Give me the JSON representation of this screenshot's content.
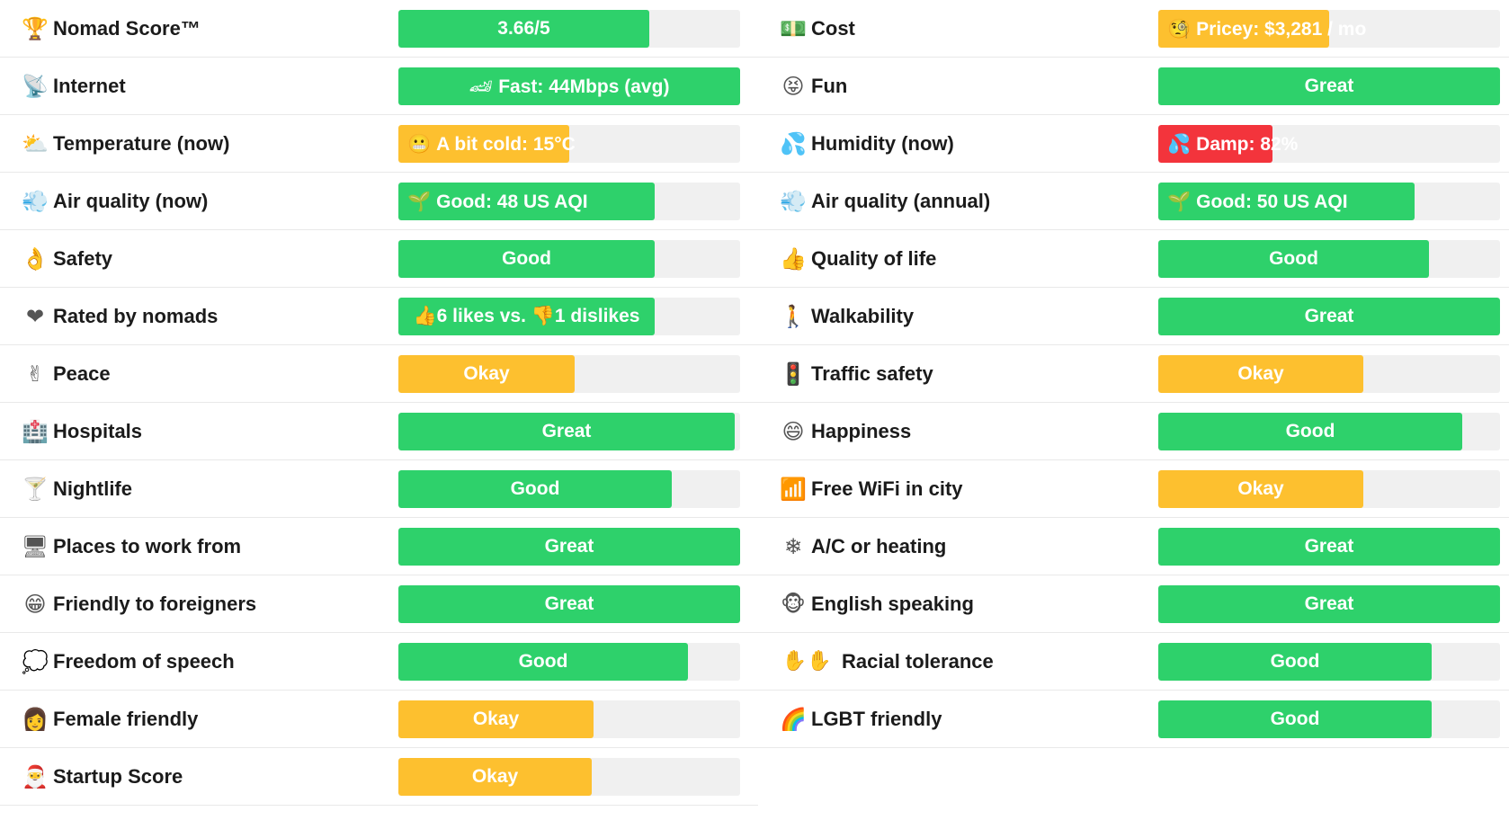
{
  "colors": {
    "green": "#2ed16b",
    "yellow": "#fdc02f",
    "red": "#f3343c",
    "track": "#f0f0f0"
  },
  "left": [
    {
      "name": "nomad-score",
      "icon": "trophy-icon",
      "glyph": "🏆",
      "label": "Nomad Score™",
      "value": "3.66/5",
      "level": 0.733,
      "color": "#2ed16b",
      "emoji": ""
    },
    {
      "name": "internet",
      "icon": "satellite-icon",
      "glyph": "📡",
      "label": "Internet",
      "value": "Fast: 44Mbps (avg)",
      "level": 1.0,
      "color": "#2ed16b",
      "emoji": "🏎"
    },
    {
      "name": "temperature-now",
      "icon": "cloud-icon",
      "glyph": "⛅",
      "label": "Temperature (now)",
      "value": "A bit cold: 15°C",
      "level": 0.5,
      "color": "#fdc02f",
      "emoji": "😬"
    },
    {
      "name": "air-quality-now",
      "icon": "wind-icon",
      "glyph": "💨",
      "label": "Air quality (now)",
      "value": "Good: 48 US AQI",
      "level": 0.75,
      "color": "#2ed16b",
      "emoji": "🌱"
    },
    {
      "name": "safety",
      "icon": "ok-hand-icon",
      "glyph": "👌",
      "label": "Safety",
      "value": "Good",
      "level": 0.75,
      "color": "#2ed16b",
      "emoji": ""
    },
    {
      "name": "rated-by-nomads",
      "icon": "heart-icon",
      "glyph": "❤",
      "label": "Rated by nomads",
      "value": "👍6 likes vs. 👎1 dislikes",
      "level": 0.75,
      "color": "#2ed16b",
      "emoji": ""
    },
    {
      "name": "peace",
      "icon": "peace-hand-icon",
      "glyph": "✌",
      "label": "Peace",
      "value": "Okay",
      "level": 0.516,
      "color": "#fdc02f",
      "emoji": ""
    },
    {
      "name": "hospitals",
      "icon": "hospital-icon",
      "glyph": "🏥",
      "label": "Hospitals",
      "value": "Great",
      "level": 0.984,
      "color": "#2ed16b",
      "emoji": ""
    },
    {
      "name": "nightlife",
      "icon": "cocktail-icon",
      "glyph": "🍸",
      "label": "Nightlife",
      "value": "Good",
      "level": 0.8,
      "color": "#2ed16b",
      "emoji": ""
    },
    {
      "name": "places-to-work",
      "icon": "desktop-icon",
      "glyph": "🖥",
      "label": "Places to work from",
      "value": "Great",
      "level": 1.0,
      "color": "#2ed16b",
      "emoji": ""
    },
    {
      "name": "friendly-to-foreigners",
      "icon": "grin-icon",
      "glyph": "😁",
      "label": "Friendly to foreigners",
      "value": "Great",
      "level": 1.0,
      "color": "#2ed16b",
      "emoji": ""
    },
    {
      "name": "freedom-of-speech",
      "icon": "speech-bubble-icon",
      "glyph": "💭",
      "label": "Freedom of speech",
      "value": "Good",
      "level": 0.847,
      "color": "#2ed16b",
      "emoji": ""
    },
    {
      "name": "female-friendly",
      "icon": "woman-icon",
      "glyph": "👩",
      "label": "Female friendly",
      "value": "Okay",
      "level": 0.571,
      "color": "#fdc02f",
      "emoji": ""
    },
    {
      "name": "startup-score",
      "icon": "santa-icon",
      "glyph": "🎅",
      "label": "Startup Score",
      "value": "Okay",
      "level": 0.566,
      "color": "#fdc02f",
      "emoji": ""
    }
  ],
  "right": [
    {
      "name": "cost",
      "icon": "money-icon",
      "glyph": "💵",
      "label": "Cost",
      "value": "Pricey: $3,281 / mo",
      "level": 0.5,
      "color": "#fdc02f",
      "emoji": "🧐",
      "wide": false
    },
    {
      "name": "fun",
      "icon": "tongue-face-icon",
      "glyph": "😝",
      "label": "Fun",
      "value": "Great",
      "level": 1.0,
      "color": "#2ed16b",
      "emoji": "",
      "wide": false
    },
    {
      "name": "humidity-now",
      "icon": "sweat-drops-icon",
      "glyph": "💦",
      "label": "Humidity (now)",
      "value": "Damp: 82%",
      "level": 0.333,
      "color": "#f3343c",
      "emoji": "💦",
      "wide": false
    },
    {
      "name": "air-quality-annual",
      "icon": "wind-icon",
      "glyph": "💨",
      "label": "Air quality (annual)",
      "value": "Good: 50 US AQI",
      "level": 0.75,
      "color": "#2ed16b",
      "emoji": "🌱",
      "wide": false
    },
    {
      "name": "quality-of-life",
      "icon": "thumbs-up-icon",
      "glyph": "👍",
      "label": "Quality of life",
      "value": "Good",
      "level": 0.792,
      "color": "#2ed16b",
      "emoji": "",
      "wide": false
    },
    {
      "name": "walkability",
      "icon": "pedestrian-icon",
      "glyph": "🚶",
      "label": "Walkability",
      "value": "Great",
      "level": 1.0,
      "color": "#2ed16b",
      "emoji": "",
      "wide": false
    },
    {
      "name": "traffic-safety",
      "icon": "traffic-light-icon",
      "glyph": "🚦",
      "label": "Traffic safety",
      "value": "Okay",
      "level": 0.6,
      "color": "#fdc02f",
      "emoji": "",
      "wide": false
    },
    {
      "name": "happiness",
      "icon": "smile-icon",
      "glyph": "😄",
      "label": "Happiness",
      "value": "Good",
      "level": 0.889,
      "color": "#2ed16b",
      "emoji": "",
      "wide": false
    },
    {
      "name": "free-wifi",
      "icon": "signal-bars-icon",
      "glyph": "📶",
      "label": "Free WiFi in city",
      "value": "Okay",
      "level": 0.6,
      "color": "#fdc02f",
      "emoji": "",
      "wide": false
    },
    {
      "name": "ac-or-heating",
      "icon": "snowflake-icon",
      "glyph": "❄",
      "label": "A/C or heating",
      "value": "Great",
      "level": 1.0,
      "color": "#2ed16b",
      "emoji": "",
      "wide": false
    },
    {
      "name": "english-speaking",
      "icon": "monkey-icon",
      "glyph": "🐵",
      "label": "English speaking",
      "value": "Great",
      "level": 1.0,
      "color": "#2ed16b",
      "emoji": "",
      "wide": false
    },
    {
      "name": "racial-tolerance",
      "icon": "raised-hands-icon",
      "glyph": "✋✋",
      "label": "Racial tolerance",
      "value": "Good",
      "level": 0.8,
      "color": "#2ed16b",
      "emoji": "",
      "wide": true
    },
    {
      "name": "lgbt-friendly",
      "icon": "rainbow-icon",
      "glyph": "🌈",
      "label": "LGBT friendly",
      "value": "Good",
      "level": 0.8,
      "color": "#2ed16b",
      "emoji": "",
      "wide": false
    }
  ]
}
